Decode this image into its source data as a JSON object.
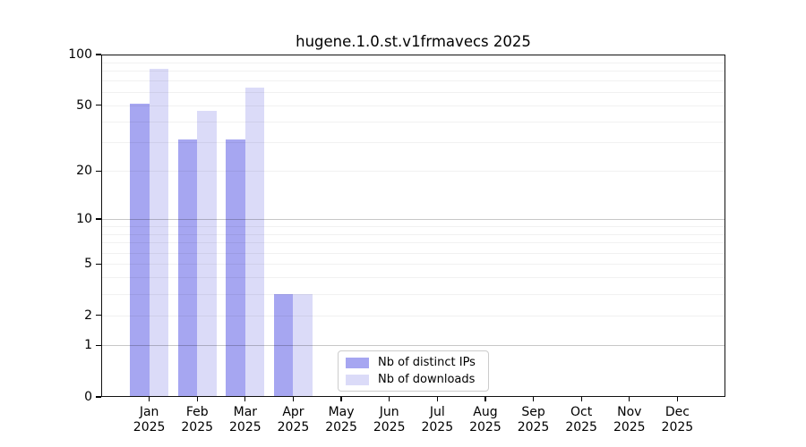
{
  "title": "hugene.1.0.st.v1frmavecs 2025",
  "legend": {
    "items": [
      {
        "label": "Nb of distinct IPs",
        "color": "#a6a6f1"
      },
      {
        "label": "Nb of downloads",
        "color": "#dbdbf8"
      }
    ]
  },
  "chart_data": {
    "type": "bar",
    "title": "hugene.1.0.st.v1frmavecs 2025",
    "categories": [
      "Jan",
      "Feb",
      "Mar",
      "Apr",
      "May",
      "Jun",
      "Jul",
      "Aug",
      "Sep",
      "Oct",
      "Nov",
      "Dec"
    ],
    "year": "2025",
    "series": [
      {
        "name": "Nb of distinct IPs",
        "color": "#a6a6f1",
        "values": [
          51,
          31,
          31,
          3,
          0,
          0,
          0,
          0,
          0,
          0,
          0,
          0
        ]
      },
      {
        "name": "Nb of downloads",
        "color": "#dbdbf8",
        "values": [
          82,
          46,
          64,
          3,
          0,
          0,
          0,
          0,
          0,
          0,
          0,
          0
        ]
      }
    ],
    "xlabel": "",
    "ylabel": "",
    "yscale": "log1p",
    "ylim": [
      0,
      100
    ],
    "yticks": [
      0,
      1,
      2,
      5,
      10,
      20,
      50,
      100
    ],
    "grid": "horizontal, major and minor log lines",
    "legend_position": "inside lower-center-left"
  }
}
